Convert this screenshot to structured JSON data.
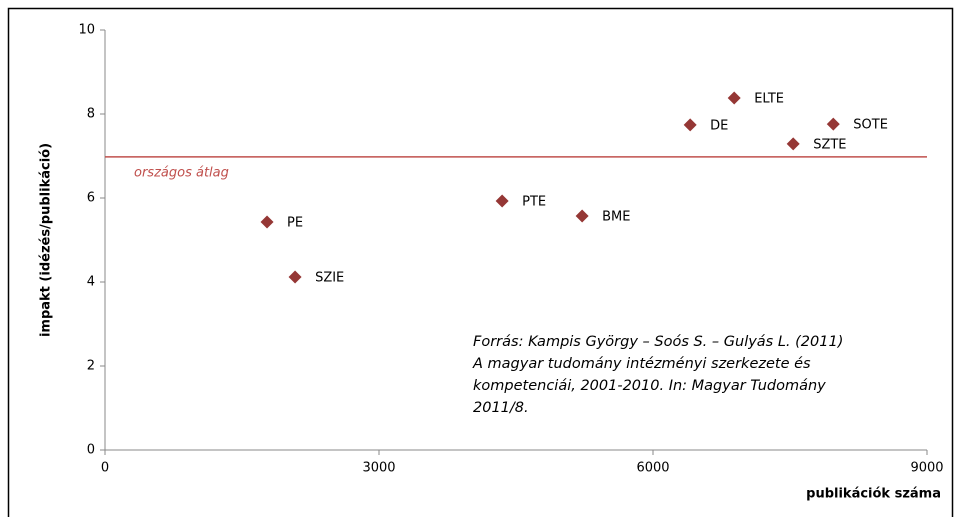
{
  "chart_data": {
    "type": "scatter",
    "x": [
      1774,
      2081,
      4348,
      5224,
      6407,
      6889,
      7535,
      7974
    ],
    "values": [
      5.43,
      4.12,
      5.93,
      5.57,
      7.74,
      8.38,
      7.29,
      7.76
    ],
    "point_labels": [
      "PE",
      "SZIE",
      "PTE",
      "BME",
      "DE",
      "ELTE",
      "SZTE",
      "SOTE"
    ],
    "color": "#953735",
    "xlim": [
      0,
      9000
    ],
    "xticks": [
      0,
      3000,
      6000,
      9000
    ],
    "ylim": [
      0,
      10
    ],
    "yticks": [
      0,
      2,
      4,
      6,
      8,
      10
    ],
    "xlabel": "publikációk száma",
    "ylabel": "impakt (idézés/publikáció)",
    "grid": false,
    "reference_line": {
      "value": 6.98,
      "label": "országos átlag",
      "color": "#c0504d"
    },
    "annotation": [
      "Forrás: Kampis György – Soós S. – Gulyás L. (2011)",
      "A magyar tudomány intézményi szerkezete és",
      "kompetenciái, 2001-2010. In: Magyar Tudomány",
      "2011/8."
    ]
  }
}
